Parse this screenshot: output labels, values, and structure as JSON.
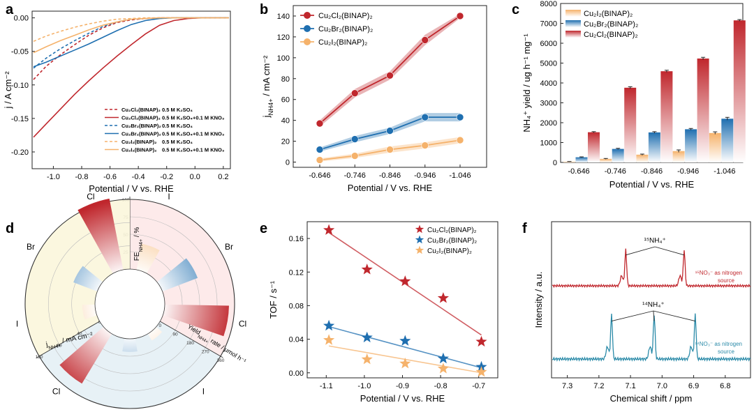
{
  "colors": {
    "red": "#c0272d",
    "blue": "#1f6fb0",
    "orange": "#f5b26b",
    "green_teal": "#2a8aa8"
  },
  "chart_data": [
    {
      "panel": "a",
      "type": "line",
      "xlabel": "Potential / V vs. RHE",
      "ylabel": "j / A cm⁻²",
      "xlim": [
        -1.15,
        0.25
      ],
      "ylim": [
        -0.225,
        0.01
      ],
      "xticks": [
        -1.0,
        -0.8,
        -0.6,
        -0.4,
        -0.2,
        0.0,
        0.2
      ],
      "xtick_labels": [
        "-1.0",
        "-0.8",
        "-0.6",
        "-0.4",
        "-0.2",
        "0.0",
        "0.2"
      ],
      "yticks": [
        0.0,
        -0.05,
        -0.1,
        -0.15,
        -0.2
      ],
      "ytick_labels": [
        "0.00",
        "-0.05",
        "-0.10",
        "-0.15",
        "-0.20"
      ],
      "series": [
        {
          "name": "Cu₂Cl₂(BINAP)₂",
          "electrolyte": "0.5 M K₂SO₄",
          "color": "#c0272d",
          "dash": true,
          "x": [
            -1.14,
            -1.05,
            -0.95,
            -0.85,
            -0.75,
            -0.65,
            -0.55,
            -0.45,
            -0.35,
            -0.25,
            -0.15,
            0.0,
            0.24
          ],
          "y": [
            -0.092,
            -0.072,
            -0.055,
            -0.04,
            -0.026,
            -0.015,
            -0.007,
            -0.003,
            -0.001,
            0.0,
            0.0,
            0.0,
            0.0
          ]
        },
        {
          "name": "Cu₂Cl₂(BINAP)₂",
          "electrolyte": "0.5 M K₂SO₄+0.1 M KNO₃",
          "color": "#c0272d",
          "dash": false,
          "x": [
            -1.14,
            -1.05,
            -0.95,
            -0.85,
            -0.75,
            -0.65,
            -0.55,
            -0.45,
            -0.35,
            -0.25,
            -0.15,
            -0.05,
            0.05,
            0.24
          ],
          "y": [
            -0.178,
            -0.158,
            -0.136,
            -0.114,
            -0.094,
            -0.075,
            -0.057,
            -0.04,
            -0.024,
            -0.011,
            -0.004,
            -0.001,
            0.0,
            0.0
          ]
        },
        {
          "name": "Cu₂Br₂(BINAP)₂",
          "electrolyte": "0.5 M K₂SO₄",
          "color": "#1f6fb0",
          "dash": true,
          "x": [
            -1.14,
            -1.05,
            -0.95,
            -0.85,
            -0.75,
            -0.65,
            -0.55,
            -0.45,
            -0.35,
            -0.25,
            0.0,
            0.24
          ],
          "y": [
            -0.075,
            -0.06,
            -0.046,
            -0.034,
            -0.023,
            -0.013,
            -0.006,
            -0.002,
            -0.001,
            0.0,
            0.0,
            0.0
          ]
        },
        {
          "name": "Cu₂Br₂(BINAP)₂",
          "electrolyte": "0.5 M K₂SO₄+0.1 M KNO₃",
          "color": "#1f6fb0",
          "dash": false,
          "x": [
            -1.14,
            -1.05,
            -0.95,
            -0.85,
            -0.75,
            -0.65,
            -0.55,
            -0.45,
            -0.35,
            -0.25,
            -0.15,
            0.0,
            0.24
          ],
          "y": [
            -0.073,
            -0.066,
            -0.057,
            -0.048,
            -0.039,
            -0.029,
            -0.019,
            -0.01,
            -0.004,
            -0.001,
            0.0,
            0.0,
            0.0
          ]
        },
        {
          "name": "Cu₂I₂(BINAP)₂",
          "electrolyte": "0.5 M K₂SO₄",
          "color": "#f5b26b",
          "dash": true,
          "x": [
            -1.14,
            -1.05,
            -0.95,
            -0.85,
            -0.75,
            -0.65,
            -0.55,
            -0.45,
            -0.35,
            0.0,
            0.24
          ],
          "y": [
            -0.035,
            -0.027,
            -0.02,
            -0.014,
            -0.009,
            -0.005,
            -0.002,
            -0.001,
            0.0,
            0.0,
            0.0
          ]
        },
        {
          "name": "Cu₂I₂(BINAP)₂",
          "electrolyte": "0.5 M K₂SO₄+0.1 M KNO₃",
          "color": "#f5b26b",
          "dash": false,
          "x": [
            -1.14,
            -1.05,
            -0.95,
            -0.85,
            -0.75,
            -0.65,
            -0.55,
            -0.45,
            -0.35,
            -0.25,
            0.0,
            0.24
          ],
          "y": [
            -0.052,
            -0.043,
            -0.034,
            -0.026,
            -0.018,
            -0.011,
            -0.006,
            -0.002,
            -0.001,
            0.0,
            0.0,
            0.0
          ]
        }
      ]
    },
    {
      "panel": "b",
      "type": "line",
      "xlabel": "Potential / V vs. RHE",
      "ylabel": "jₙₕ₄₊ / mA cm⁻²",
      "ylabel_main": "j",
      "ylabel_sub": "NH4+",
      "ylabel_rest": " / mA cm⁻²",
      "categories": [
        "-0.646",
        "-0.746",
        "-0.846",
        "-0.946",
        "-1.046"
      ],
      "ylim": [
        -5,
        150
      ],
      "yticks": [
        0,
        20,
        40,
        60,
        80,
        100,
        120,
        140
      ],
      "series": [
        {
          "name": "Cu₂Cl₂(BINAP)₂",
          "color": "#c0272d",
          "values": [
            37,
            66,
            83,
            117,
            140
          ],
          "band": [
            3,
            4,
            4,
            5,
            2
          ]
        },
        {
          "name": "Cu₂Br₂(BINAP)₂",
          "color": "#1f6fb0",
          "values": [
            12,
            22,
            30,
            43,
            43
          ],
          "band": [
            2,
            3,
            3,
            4,
            4
          ]
        },
        {
          "name": "Cu₂I₂(BINAP)₂",
          "color": "#f5b26b",
          "values": [
            2,
            6,
            12,
            16,
            21
          ],
          "band": [
            1.5,
            2,
            3,
            3,
            3
          ]
        }
      ]
    },
    {
      "panel": "c",
      "type": "bar",
      "xlabel": "Potential / V vs. RHE",
      "ylabel": "NH₄⁺ yield / ug h⁻¹ mg⁻¹",
      "categories": [
        "-0.646",
        "-0.746",
        "-0.846",
        "-0.946",
        "-1.046"
      ],
      "ylim": [
        0,
        8000
      ],
      "yticks": [
        0,
        1000,
        2000,
        3000,
        4000,
        5000,
        6000,
        7000,
        8000
      ],
      "series": [
        {
          "name": "Cu₂I₂(BINAP)₂",
          "color": "#f5b26b",
          "values": [
            40,
            180,
            390,
            570,
            1480
          ],
          "errors": [
            10,
            20,
            30,
            60,
            60
          ]
        },
        {
          "name": "Cu₂Br₂(BINAP)₂",
          "color": "#1f6fb0",
          "values": [
            260,
            680,
            1510,
            1670,
            2200
          ],
          "errors": [
            20,
            30,
            40,
            40,
            70
          ]
        },
        {
          "name": "Cu₂Cl₂(BINAP)₂",
          "color": "#c0272d",
          "values": [
            1520,
            3760,
            4590,
            5230,
            7150
          ],
          "errors": [
            30,
            50,
            50,
            60,
            40
          ]
        }
      ]
    },
    {
      "panel": "d",
      "type": "polar-bar",
      "sectors": [
        {
          "name": "FEₙₕ₄₊ / %",
          "label_main": "FE",
          "label_sub": "NH4+",
          "label_rest": " / %",
          "rmax": 100,
          "ticks": [
            0,
            25,
            50,
            75,
            100
          ],
          "halide_labels": [
            "I",
            "Br",
            "Cl"
          ],
          "values": [
            38,
            54,
            92
          ],
          "colors": [
            "#f5b26b",
            "#1f6fb0",
            "#c0272d"
          ]
        },
        {
          "name": "Yieldₙₕ₄₊ rate / µmol h⁻¹",
          "label_main": "Yield",
          "label_sub": "NH4+",
          "label_rest": " rate / μmol h⁻¹",
          "rmax": 360,
          "ticks": [
            0,
            90,
            180,
            270,
            360
          ],
          "halide_labels": [
            "I",
            "Br",
            "Cl"
          ],
          "values": [
            40,
            68,
            300
          ],
          "colors": [
            "#f5b26b",
            "#1f6fb0",
            "#c0272d"
          ]
        },
        {
          "name": "jₙₕ₄₊ / mA cm⁻²",
          "label_main": "j",
          "label_sub": "NH4+",
          "label_rest": " / mA cm⁻²",
          "rmax": 120,
          "ticks": [
            0,
            40,
            80,
            120
          ],
          "halide_labels": [
            "I",
            "Br",
            "Cl"
          ],
          "values": [
            22,
            44,
            140
          ],
          "colors": [
            "#f5b26b",
            "#1f6fb0",
            "#c0272d"
          ]
        }
      ]
    },
    {
      "panel": "e",
      "type": "scatter",
      "xlabel": "Potential / V vs. RHE",
      "ylabel": "TOF / s⁻¹",
      "xlim": [
        -1.15,
        -0.65
      ],
      "ylim": [
        -0.006,
        0.18
      ],
      "xticks": [
        -1.1,
        -1.0,
        -0.9,
        -0.8,
        -0.7
      ],
      "xtick_labels": [
        "-1.1",
        "-1.0",
        "-0.9",
        "-0.8",
        "-0.7"
      ],
      "yticks": [
        0.0,
        0.04,
        0.08,
        0.12,
        0.16
      ],
      "ytick_labels": [
        "0.00",
        "0.04",
        "0.08",
        "0.12",
        "0.16"
      ],
      "series": [
        {
          "name": "Cu₂Cl₂(BINAP)₂",
          "color": "#c0272d",
          "x": [
            -1.093,
            -0.993,
            -0.893,
            -0.793,
            -0.693
          ],
          "y": [
            0.17,
            0.123,
            0.109,
            0.089,
            0.037
          ],
          "fit": [
            0.167,
            0.045
          ]
        },
        {
          "name": "Cu₂Br₂(BINAP)₂",
          "color": "#1f6fb0",
          "x": [
            -1.093,
            -0.993,
            -0.893,
            -0.793,
            -0.693
          ],
          "y": [
            0.056,
            0.042,
            0.038,
            0.017,
            0.007
          ],
          "fit": [
            0.055,
            0.006
          ]
        },
        {
          "name": "Cu₂I₂(BINAP)₂",
          "color": "#f5b26b",
          "x": [
            -1.093,
            -0.993,
            -0.893,
            -0.793,
            -0.693
          ],
          "y": [
            0.039,
            0.016,
            0.011,
            0.005,
            0.001
          ],
          "fit": [
            0.032,
            0.0
          ]
        }
      ]
    },
    {
      "panel": "f",
      "type": "line",
      "xlabel": "Chemical shift / ppm",
      "ylabel": "Intensity / a.u.",
      "xlim": [
        7.35,
        6.72
      ],
      "xticks": [
        6.8,
        6.9,
        7.0,
        7.1,
        7.2,
        7.3
      ],
      "xtick_labels": [
        "6.8",
        "6.9",
        "7.0",
        "7.1",
        "7.2",
        "7.3"
      ],
      "series": [
        {
          "name": "¹⁵NO₃⁻ as nitrogen source",
          "color": "#c0272d",
          "peaks": [
            6.93,
            7.115
          ],
          "peak_label": "¹⁵NH₄⁺"
        },
        {
          "name": "¹⁴NO₃⁻ as nitrogen source",
          "color": "#2a8aa8",
          "peaks": [
            6.895,
            7.025,
            7.16
          ],
          "peak_label": "¹⁴NH₄⁺"
        }
      ]
    }
  ],
  "labels": {
    "a": "a",
    "b": "b",
    "c": "c",
    "d": "d",
    "e": "e",
    "f": "f",
    "c_legend": [
      "Cu₂I₂(BINAP)₂",
      "Cu₂Br₂(BINAP)₂",
      "Cu₂Cl₂(BINAP)₂"
    ],
    "b_legend": [
      "Cu₂Cl₂(BINAP)₂",
      "Cu₂Br₂(BINAP)₂",
      "Cu₂I₂(BINAP)₂"
    ],
    "f_red_source": [
      "¹⁵NO₃⁻ as nitrogen",
      "source"
    ],
    "f_blue_source": [
      "¹⁴NO₃⁻ as nitrogen",
      "source"
    ]
  }
}
